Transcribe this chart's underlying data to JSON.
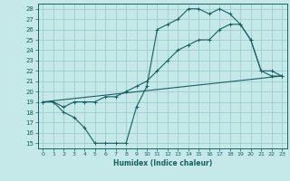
{
  "xlabel": "Humidex (Indice chaleur)",
  "bg_color": "#c5e8e8",
  "grid_color": "#9ecece",
  "line_color": "#1a6060",
  "xlim": [
    -0.5,
    23.5
  ],
  "ylim": [
    14.5,
    28.5
  ],
  "xticks": [
    0,
    1,
    2,
    3,
    4,
    5,
    6,
    7,
    8,
    9,
    10,
    11,
    12,
    13,
    14,
    15,
    16,
    17,
    18,
    19,
    20,
    21,
    22,
    23
  ],
  "yticks": [
    15,
    16,
    17,
    18,
    19,
    20,
    21,
    22,
    23,
    24,
    25,
    26,
    27,
    28
  ],
  "line1_x": [
    0,
    1,
    2,
    3,
    4,
    5,
    6,
    7,
    8,
    9,
    10,
    11,
    12,
    13,
    14,
    15,
    16,
    17,
    18,
    19,
    20,
    21,
    22,
    23
  ],
  "line1_y": [
    19,
    19,
    18,
    17.5,
    16.5,
    15,
    15,
    15,
    15,
    18.5,
    20.5,
    26.0,
    26.5,
    27.0,
    28,
    28,
    27.5,
    28,
    27.5,
    26.5,
    25,
    22,
    22,
    21.5
  ],
  "line2_x": [
    0,
    1,
    2,
    3,
    4,
    5,
    6,
    7,
    8,
    9,
    10,
    11,
    12,
    13,
    14,
    15,
    16,
    17,
    18,
    19,
    20,
    21,
    22,
    23
  ],
  "line2_y": [
    19,
    19,
    18.5,
    19,
    19,
    19,
    19.5,
    19.5,
    20,
    20.5,
    21,
    22,
    23,
    24,
    24.5,
    25,
    25,
    26,
    26.5,
    26.5,
    25,
    22,
    21.5,
    21.5
  ],
  "line3_x": [
    0,
    23
  ],
  "line3_y": [
    19,
    21.5
  ]
}
